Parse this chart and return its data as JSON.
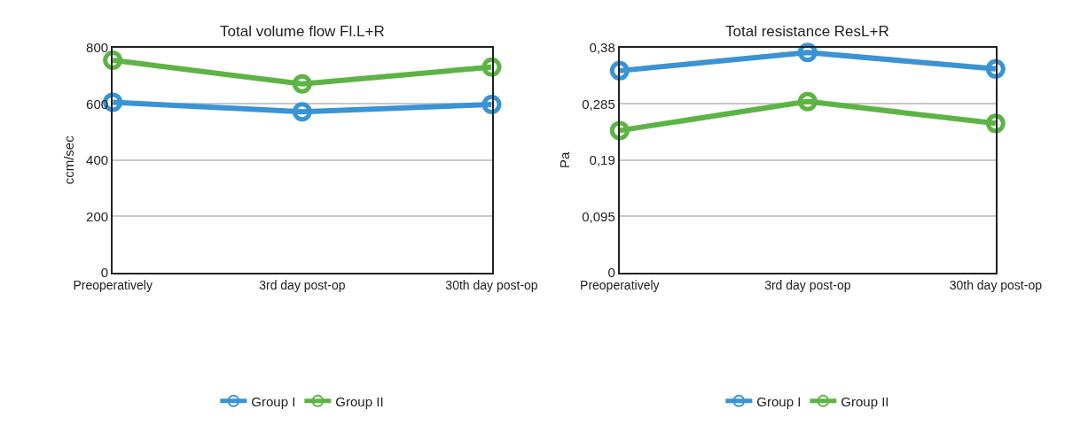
{
  "chart_data": [
    {
      "type": "line",
      "title": "Total volume flow Fl.L+R",
      "ylabel": "ccm/sec",
      "categories": [
        "Preoperatively",
        "3rd day post-op",
        "30th day post-op"
      ],
      "series": [
        {
          "name": "Group I",
          "color": "#3a93d3",
          "values": [
            606,
            572,
            598
          ]
        },
        {
          "name": "Group II",
          "color": "#5db445",
          "values": [
            755,
            671,
            731
          ]
        }
      ],
      "ylim": [
        0,
        800
      ],
      "yticks": [
        0,
        200,
        400,
        600,
        800
      ],
      "grid": "y",
      "legend": "bottom",
      "marker": "circle",
      "line_style": "solid"
    },
    {
      "type": "line",
      "title": "Total resistance ResL+R",
      "ylabel": "Pa",
      "categories": [
        "Preoperatively",
        "3rd day post-op",
        "30th day post-op"
      ],
      "series": [
        {
          "name": "Group I",
          "color": "#3a93d3",
          "values": [
            0.341,
            0.372,
            0.344
          ]
        },
        {
          "name": "Group II",
          "color": "#5db445",
          "values": [
            0.24,
            0.289,
            0.252
          ]
        }
      ],
      "ylim": [
        0,
        0.38
      ],
      "yticks": [
        0,
        {
          "value": 0.095,
          "label": "0,095"
        },
        {
          "value": 0.19,
          "label": "0,19"
        },
        {
          "value": 0.285,
          "label": "0,285"
        },
        {
          "value": 0.38,
          "label": "0,38"
        }
      ],
      "grid": "y",
      "legend": "bottom",
      "marker": "circle",
      "line_style": "solid"
    }
  ]
}
